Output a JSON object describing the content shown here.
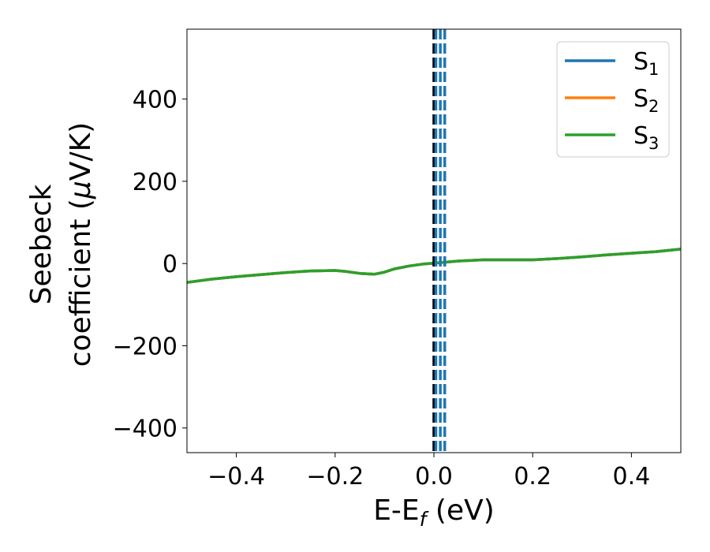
{
  "chart_data": {
    "type": "line",
    "title": "",
    "xlabel": "E-E",
    "xlabel_sub": "f",
    "xlabel_unit": " (eV)",
    "ylabel_line1": "Seebeck",
    "ylabel_line2_pre": "coefficient  (",
    "ylabel_mu": "μ",
    "ylabel_line2_post": "V/K)",
    "xlim": [
      -0.5,
      0.5
    ],
    "ylim": [
      -460,
      570
    ],
    "xticks": [
      -0.4,
      -0.2,
      0.0,
      0.2,
      0.4
    ],
    "xtick_labels": [
      "−0.4",
      "−0.2",
      "0.0",
      "0.2",
      "0.4"
    ],
    "yticks": [
      -400,
      -200,
      0,
      200,
      400
    ],
    "ytick_labels": [
      "−400",
      "−200",
      "0",
      "200",
      "400"
    ],
    "grid": false,
    "legend_position": "top-right",
    "series": [
      {
        "name": "S",
        "sub": "1",
        "color": "#1f77b4",
        "x": [
          -0.5,
          -0.45,
          -0.4,
          -0.35,
          -0.3,
          -0.25,
          -0.2,
          -0.18,
          -0.15,
          -0.12,
          -0.1,
          -0.08,
          -0.05,
          -0.02,
          0.0,
          0.05,
          0.1,
          0.15,
          0.2,
          0.25,
          0.3,
          0.35,
          0.4,
          0.45,
          0.5
        ],
        "y": [
          -46,
          -38,
          -32,
          -27,
          -22,
          -18,
          -17,
          -19,
          -24,
          -26,
          -21,
          -13,
          -6,
          -1,
          1,
          6,
          9,
          9,
          9,
          12,
          16,
          21,
          25,
          29,
          35
        ]
      },
      {
        "name": "S",
        "sub": "2",
        "color": "#ff7f0e",
        "x": [
          -0.5,
          -0.45,
          -0.4,
          -0.35,
          -0.3,
          -0.25,
          -0.2,
          -0.18,
          -0.15,
          -0.12,
          -0.1,
          -0.08,
          -0.05,
          -0.02,
          0.0,
          0.05,
          0.1,
          0.15,
          0.2,
          0.25,
          0.3,
          0.35,
          0.4,
          0.45,
          0.5
        ],
        "y": [
          -46,
          -38,
          -32,
          -27,
          -22,
          -18,
          -17,
          -19,
          -24,
          -26,
          -21,
          -13,
          -6,
          -1,
          1,
          6,
          9,
          9,
          9,
          12,
          16,
          21,
          25,
          29,
          35
        ]
      },
      {
        "name": "S",
        "sub": "3",
        "color": "#2ca02c",
        "x": [
          -0.5,
          -0.45,
          -0.4,
          -0.35,
          -0.3,
          -0.25,
          -0.2,
          -0.18,
          -0.15,
          -0.12,
          -0.1,
          -0.08,
          -0.05,
          -0.02,
          0.0,
          0.05,
          0.1,
          0.15,
          0.2,
          0.25,
          0.3,
          0.35,
          0.4,
          0.45,
          0.5
        ],
        "y": [
          -46,
          -38,
          -32,
          -27,
          -22,
          -18,
          -17,
          -19,
          -24,
          -26,
          -21,
          -13,
          -6,
          -1,
          1,
          6,
          9,
          9,
          9,
          12,
          16,
          21,
          25,
          29,
          35
        ]
      }
    ],
    "vlines": [
      {
        "x": 0.0,
        "color": "#000000",
        "style": "dashed"
      },
      {
        "x": 0.004,
        "color": "#1f77b4",
        "style": "dashed"
      },
      {
        "x": 0.013,
        "color": "#1f77b4",
        "style": "dashed"
      },
      {
        "x": 0.022,
        "color": "#1f77b4",
        "style": "dashed"
      }
    ]
  }
}
